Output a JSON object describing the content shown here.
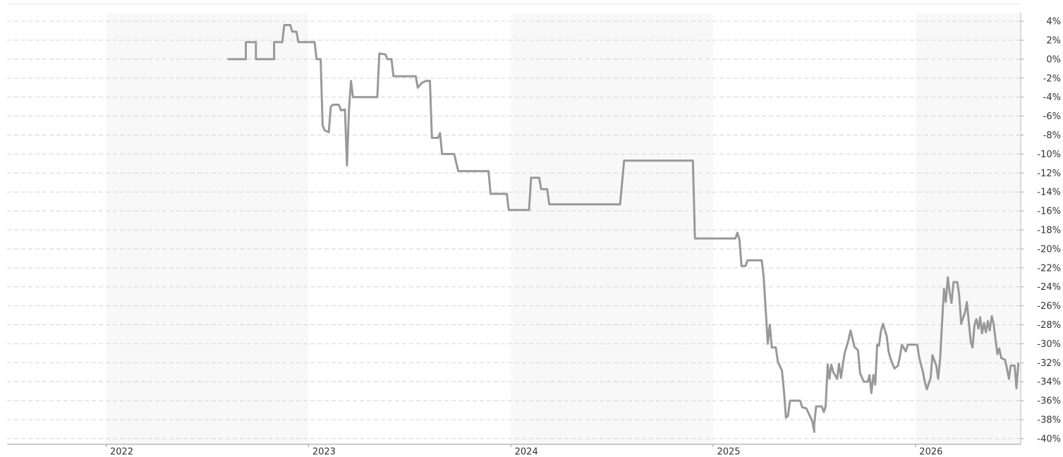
{
  "chart_data": {
    "type": "line",
    "color": "#999999",
    "grid": true,
    "xlim": [
      2021.51,
      2026.52
    ],
    "xticks": [
      2022,
      2023,
      2024,
      2025,
      2026
    ],
    "ylim": [
      -40.6,
      4.9
    ],
    "yticks": [
      {
        "value": 4,
        "label": "4%"
      },
      {
        "value": 2,
        "label": "2%"
      },
      {
        "value": 0,
        "label": "0%"
      },
      {
        "value": -2,
        "label": "-2%"
      },
      {
        "value": -4,
        "label": "-4%"
      },
      {
        "value": -6,
        "label": "-6%"
      },
      {
        "value": -8,
        "label": "-8%"
      },
      {
        "value": -10,
        "label": "-10%"
      },
      {
        "value": -12,
        "label": "-12%"
      },
      {
        "value": -14,
        "label": "-14%"
      },
      {
        "value": -16,
        "label": "-16%"
      },
      {
        "value": -18,
        "label": "-18%"
      },
      {
        "value": -20,
        "label": "-20%"
      },
      {
        "value": -22,
        "label": "-22%"
      },
      {
        "value": -24,
        "label": "-24%"
      },
      {
        "value": -26,
        "label": "-26%"
      },
      {
        "value": -28,
        "label": "-28%"
      },
      {
        "value": -30,
        "label": "-30%"
      },
      {
        "value": -32,
        "label": "-32%"
      },
      {
        "value": -34,
        "label": "-34%"
      },
      {
        "value": -36,
        "label": "-36%"
      },
      {
        "value": -38,
        "label": "-38%"
      },
      {
        "value": -40,
        "label": "-40%"
      }
    ],
    "x": [
      2022.6,
      2022.69,
      2022.69,
      2022.74,
      2022.74,
      2022.83,
      2022.83,
      2022.87,
      2022.88,
      2022.91,
      2022.92,
      2022.94,
      2022.95,
      2023.03,
      2023.04,
      2023.06,
      2023.07,
      2023.08,
      2023.1,
      2023.11,
      2023.12,
      2023.15,
      2023.16,
      2023.18,
      2023.19,
      2023.2,
      2023.21,
      2023.22,
      2023.34,
      2023.35,
      2023.38,
      2023.39,
      2023.41,
      2023.42,
      2023.53,
      2023.54,
      2023.56,
      2023.58,
      2023.6,
      2023.61,
      2023.64,
      2023.65,
      2023.66,
      2023.72,
      2023.74,
      2023.89,
      2023.9,
      2023.98,
      2023.99,
      2024.09,
      2024.1,
      2024.14,
      2024.15,
      2024.18,
      2024.19,
      2024.54,
      2024.56,
      2024.9,
      2024.91,
      2025.11,
      2025.12,
      2025.13,
      2025.14,
      2025.16,
      2025.17,
      2025.24,
      2025.25,
      2025.27,
      2025.28,
      2025.29,
      2025.31,
      2025.32,
      2025.34,
      2025.35,
      2025.36,
      2025.37,
      2025.38,
      2025.43,
      2025.44,
      2025.46,
      2025.48,
      2025.49,
      2025.5,
      2025.499,
      2025.509,
      2025.537,
      2025.547,
      2025.556,
      2025.566,
      2025.575,
      2025.584,
      2025.594,
      2025.613,
      2025.622,
      2025.632,
      2025.641,
      2025.65,
      2025.669,
      2025.679,
      2025.698,
      2025.716,
      2025.726,
      2025.745,
      2025.764,
      2025.773,
      2025.782,
      2025.792,
      2025.801,
      2025.811,
      2025.82,
      2025.829,
      2025.839,
      2025.858,
      2025.867,
      2025.877,
      2025.896,
      2025.914,
      2025.924,
      2025.933,
      2025.952,
      2025.962,
      2026.009,
      2026.018,
      2026.037,
      2026.046,
      2026.056,
      2026.075,
      2026.084,
      2026.103,
      2026.112,
      2026.122,
      2026.131,
      2026.141,
      2026.15,
      2026.16,
      2026.169,
      2026.178,
      2026.188,
      2026.207,
      2026.216,
      2026.226,
      2026.235,
      2026.245,
      2026.254,
      2026.263,
      2026.273,
      2026.282,
      2026.292,
      2026.301,
      2026.311,
      2026.32,
      2026.329,
      2026.339,
      2026.348,
      2026.358,
      2026.367,
      2026.377,
      2026.386,
      2026.395,
      2026.405,
      2026.414,
      2026.424,
      2026.443,
      2026.452,
      2026.462,
      2026.471,
      2026.49,
      2026.499,
      2026.509
    ],
    "values": [
      0,
      0,
      1.8,
      1.8,
      0,
      0,
      1.8,
      1.8,
      3.6,
      3.6,
      2.9,
      2.9,
      1.8,
      1.8,
      0,
      0,
      -7,
      -7.5,
      -7.7,
      -5,
      -4.8,
      -4.8,
      -5.4,
      -5.3,
      -11.2,
      -5.4,
      -2.3,
      -4,
      -4,
      0.6,
      0.5,
      0,
      0,
      -1.8,
      -1.8,
      -3,
      -2.5,
      -2.3,
      -2.3,
      -8.3,
      -8.3,
      -7.8,
      -10,
      -10,
      -11.8,
      -11.8,
      -14.2,
      -14.2,
      -15.9,
      -15.9,
      -12.5,
      -12.5,
      -13.7,
      -13.7,
      -15.3,
      -15.3,
      -10.7,
      -10.7,
      -18.9,
      -18.9,
      -18.3,
      -19,
      -21.8,
      -21.8,
      -21.2,
      -21.2,
      -23,
      -30,
      -28,
      -30.4,
      -30.4,
      -31.9,
      -32.8,
      -35,
      -37.8,
      -37.6,
      -36,
      -36,
      -36.7,
      -36.8,
      -37.7,
      -38.2,
      -39.3,
      -38.6,
      -36.6,
      -36.6,
      -37.2,
      -36.6,
      -32.2,
      -33.7,
      -32.2,
      -33,
      -33.7,
      -32.1,
      -33.6,
      -32.2,
      -31,
      -29.6,
      -28.6,
      -30.3,
      -30.7,
      -33.1,
      -34,
      -34,
      -33.3,
      -35.2,
      -33.3,
      -34.3,
      -30.1,
      -30.2,
      -28.7,
      -27.9,
      -29.2,
      -30.8,
      -31.6,
      -32.6,
      -32.3,
      -31.2,
      -30.1,
      -30.8,
      -30.1,
      -30.1,
      -31.4,
      -33,
      -34,
      -34.8,
      -33.6,
      -31.2,
      -32.3,
      -33.7,
      -31.6,
      -28,
      -24.2,
      -25.6,
      -23,
      -24.6,
      -25.7,
      -23.5,
      -23.5,
      -24.9,
      -27.9,
      -27.3,
      -26.7,
      -25.6,
      -27.6,
      -29.8,
      -30.4,
      -28,
      -27.4,
      -28.4,
      -27.2,
      -28.9,
      -27.8,
      -28.8,
      -27.6,
      -28.6,
      -27.1,
      -27.9,
      -29.4,
      -31.1,
      -30.5,
      -31.5,
      -31.7,
      -32.6,
      -33.7,
      -32.3,
      -32.3,
      -34.7,
      -32
    ]
  }
}
